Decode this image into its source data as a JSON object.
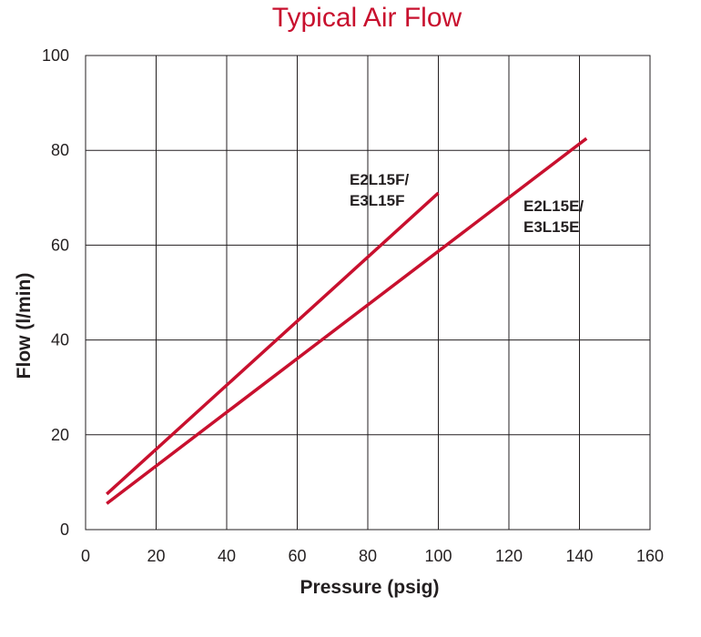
{
  "chart_data": {
    "type": "line",
    "title": "Typical Air Flow",
    "xlabel": "Pressure (psig)",
    "ylabel": "Flow (l/min)",
    "xlim": [
      0,
      160
    ],
    "ylim": [
      0,
      100
    ],
    "xticks": [
      "0",
      "20",
      "40",
      "60",
      "80",
      "100",
      "120",
      "140",
      "160"
    ],
    "yticks": [
      "0",
      "20",
      "40",
      "60",
      "80",
      "100"
    ],
    "grid": true,
    "line_color": "#c8102e",
    "series": [
      {
        "label_lines": [
          "E2L15F/",
          "E3L15F"
        ],
        "x": [
          6,
          100
        ],
        "y": [
          7.5,
          71
        ]
      },
      {
        "label_lines": [
          "E2L15E/",
          "E3L15E"
        ],
        "x": [
          6,
          142
        ],
        "y": [
          5.5,
          82.5
        ]
      }
    ]
  }
}
